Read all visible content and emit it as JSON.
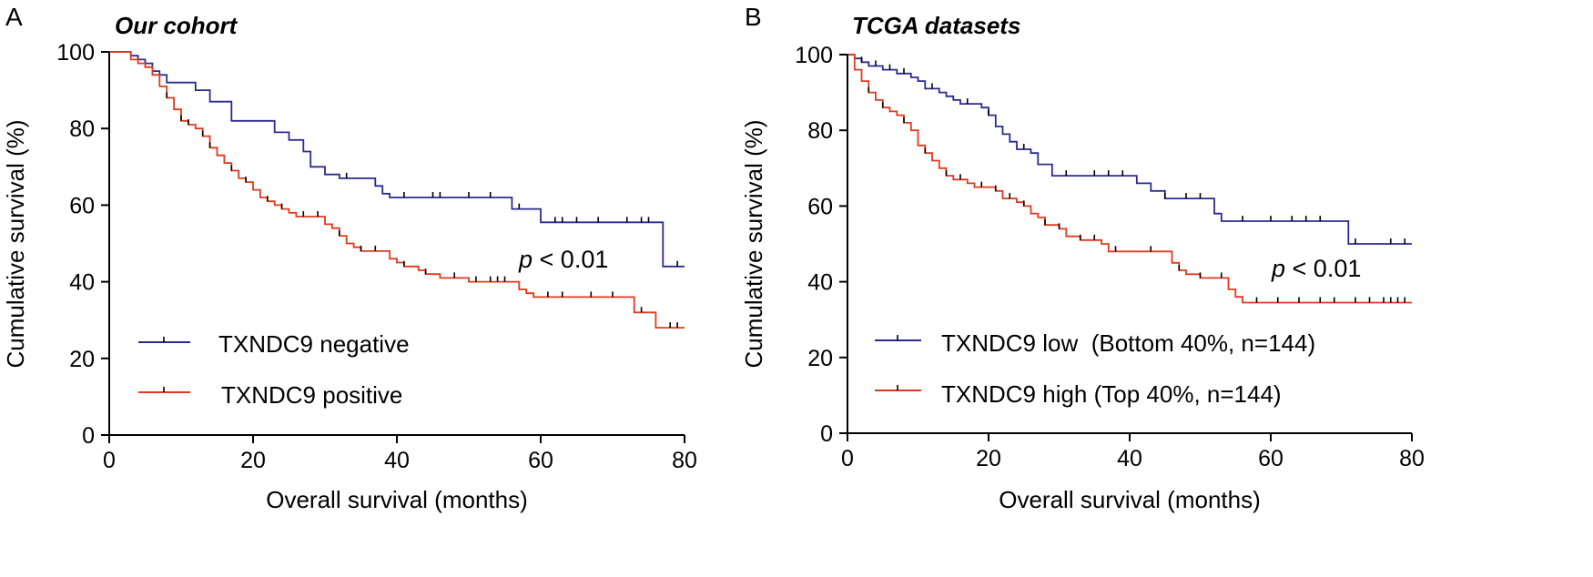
{
  "colors": {
    "negative_line": "#2b2b8f",
    "positive_line": "#e03a1e",
    "censor_mark": "#000000"
  },
  "chart_data": [
    {
      "type": "line",
      "panel_letter": "A",
      "title": "Our cohort",
      "xlabel": "Overall survival (months)",
      "ylabel": "Cumulative survival (%)",
      "xlim": [
        0,
        80
      ],
      "ylim": [
        0,
        100
      ],
      "xticks": [
        0,
        20,
        40,
        60,
        80
      ],
      "yticks": [
        0,
        20,
        40,
        60,
        80,
        100
      ],
      "grid": false,
      "annotation": {
        "p": "p",
        "rest": " < 0.01"
      },
      "series": [
        {
          "name": "TXNDC9 negative",
          "color": "#2b2b8f",
          "steps": [
            [
              0,
              100
            ],
            [
              2,
              100
            ],
            [
              3,
              99
            ],
            [
              4,
              98
            ],
            [
              5,
              97
            ],
            [
              6,
              95
            ],
            [
              7,
              94
            ],
            [
              8,
              92
            ],
            [
              12,
              90
            ],
            [
              14,
              87
            ],
            [
              17,
              82
            ],
            [
              22,
              82
            ],
            [
              23,
              79
            ],
            [
              25,
              77
            ],
            [
              27,
              74
            ],
            [
              28,
              70
            ],
            [
              30,
              68
            ],
            [
              32,
              67
            ],
            [
              35,
              67
            ],
            [
              37,
              65
            ],
            [
              38,
              63
            ],
            [
              39,
              62
            ],
            [
              55,
              62
            ],
            [
              56,
              59
            ],
            [
              60,
              59
            ],
            [
              60,
              55.5
            ],
            [
              76,
              55.5
            ],
            [
              77,
              44
            ],
            [
              80,
              44
            ]
          ],
          "censor": [
            33,
            41,
            45,
            46,
            50,
            53,
            57,
            62,
            63,
            65,
            68,
            72,
            74,
            75,
            79
          ]
        },
        {
          "name": "TXNDC9 positive",
          "color": "#e03a1e",
          "steps": [
            [
              0,
              100
            ],
            [
              2,
              100
            ],
            [
              3,
              98
            ],
            [
              4,
              97
            ],
            [
              5,
              96
            ],
            [
              6,
              94
            ],
            [
              7,
              91
            ],
            [
              8,
              88
            ],
            [
              9,
              85
            ],
            [
              10,
              82
            ],
            [
              11,
              81
            ],
            [
              12,
              80
            ],
            [
              13,
              78
            ],
            [
              14,
              75
            ],
            [
              15,
              73
            ],
            [
              16,
              71
            ],
            [
              17,
              69
            ],
            [
              18,
              67
            ],
            [
              19,
              66
            ],
            [
              20,
              64
            ],
            [
              21,
              62
            ],
            [
              22,
              61
            ],
            [
              23,
              60
            ],
            [
              24,
              59
            ],
            [
              25,
              58
            ],
            [
              26,
              57
            ],
            [
              29,
              57
            ],
            [
              30,
              55
            ],
            [
              31,
              54
            ],
            [
              32,
              52
            ],
            [
              33,
              50
            ],
            [
              34,
              49
            ],
            [
              35,
              48
            ],
            [
              38,
              48
            ],
            [
              39,
              46
            ],
            [
              40,
              45
            ],
            [
              41,
              44
            ],
            [
              43,
              43
            ],
            [
              44,
              42
            ],
            [
              45,
              42
            ],
            [
              46,
              41
            ],
            [
              49,
              41
            ],
            [
              50,
              40
            ],
            [
              56,
              40
            ],
            [
              57,
              38
            ],
            [
              58,
              37
            ],
            [
              59,
              36
            ],
            [
              72,
              36
            ],
            [
              73,
              32
            ],
            [
              75,
              32
            ],
            [
              76,
              28
            ],
            [
              80,
              28
            ]
          ],
          "censor": [
            8,
            10,
            11,
            13,
            14,
            17,
            19,
            22,
            24,
            27,
            29,
            32,
            35,
            37,
            41,
            44,
            48,
            51,
            53,
            54,
            55,
            61,
            63,
            67,
            70,
            74,
            78,
            79
          ]
        }
      ]
    },
    {
      "type": "line",
      "panel_letter": "B",
      "title": "TCGA datasets",
      "xlabel": "Overall survival (months)",
      "ylabel": "Cumulative survival (%)",
      "xlim": [
        0,
        80
      ],
      "ylim": [
        0,
        100
      ],
      "xticks": [
        0,
        20,
        40,
        60,
        80
      ],
      "yticks": [
        0,
        20,
        40,
        60,
        80,
        100
      ],
      "grid": false,
      "annotation": {
        "p": "p",
        "rest": " < 0.01"
      },
      "series": [
        {
          "name": "TXNDC9 low  (Bottom 40%, n=144)",
          "color": "#2b2b8f",
          "steps": [
            [
              0,
              100
            ],
            [
              1,
              99
            ],
            [
              2,
              98
            ],
            [
              3,
              97
            ],
            [
              5,
              96
            ],
            [
              7,
              95
            ],
            [
              9,
              94
            ],
            [
              10,
              93
            ],
            [
              11,
              91
            ],
            [
              13,
              90
            ],
            [
              14,
              89
            ],
            [
              15,
              88
            ],
            [
              16,
              87
            ],
            [
              19,
              86
            ],
            [
              20,
              84
            ],
            [
              21,
              81
            ],
            [
              22,
              79
            ],
            [
              23,
              77
            ],
            [
              24,
              75
            ],
            [
              26,
              74
            ],
            [
              27,
              71
            ],
            [
              29,
              68
            ],
            [
              40,
              68
            ],
            [
              41,
              66
            ],
            [
              43,
              64
            ],
            [
              45,
              62
            ],
            [
              51,
              62
            ],
            [
              52,
              58
            ],
            [
              53,
              56
            ],
            [
              70,
              56
            ],
            [
              71,
              50
            ],
            [
              80,
              50
            ]
          ],
          "censor": [
            2,
            4,
            6,
            8,
            12,
            17,
            20,
            25,
            31,
            35,
            37,
            39,
            45,
            48,
            50,
            56,
            60,
            63,
            65,
            67,
            72,
            77,
            79
          ]
        },
        {
          "name": "TXNDC9 high (Top 40%, n=144)",
          "color": "#e03a1e",
          "steps": [
            [
              0,
              100
            ],
            [
              1,
              96
            ],
            [
              2,
              93
            ],
            [
              3,
              90
            ],
            [
              4,
              88
            ],
            [
              5,
              86
            ],
            [
              6,
              85
            ],
            [
              7,
              84
            ],
            [
              8,
              82
            ],
            [
              9,
              80
            ],
            [
              10,
              76
            ],
            [
              11,
              74
            ],
            [
              12,
              72
            ],
            [
              13,
              70
            ],
            [
              14,
              68
            ],
            [
              15,
              67
            ],
            [
              17,
              66
            ],
            [
              18,
              65
            ],
            [
              21,
              64
            ],
            [
              22,
              62
            ],
            [
              24,
              61
            ],
            [
              25,
              60
            ],
            [
              26,
              58
            ],
            [
              27,
              57
            ],
            [
              28,
              55
            ],
            [
              30,
              54
            ],
            [
              31,
              52
            ],
            [
              33,
              51
            ],
            [
              36,
              50
            ],
            [
              37,
              48
            ],
            [
              45,
              48
            ],
            [
              46,
              45
            ],
            [
              47,
              43
            ],
            [
              48,
              42
            ],
            [
              50,
              41
            ],
            [
              53,
              41
            ],
            [
              54,
              38
            ],
            [
              55,
              36
            ],
            [
              56,
              34.5
            ],
            [
              80,
              34.5
            ]
          ],
          "censor": [
            3,
            5,
            8,
            11,
            14,
            16,
            19,
            21,
            23,
            25,
            28,
            30,
            33,
            35,
            38,
            43,
            47,
            50,
            53,
            58,
            61,
            64,
            67,
            69,
            72,
            74,
            76,
            77,
            78,
            79
          ]
        }
      ]
    }
  ]
}
